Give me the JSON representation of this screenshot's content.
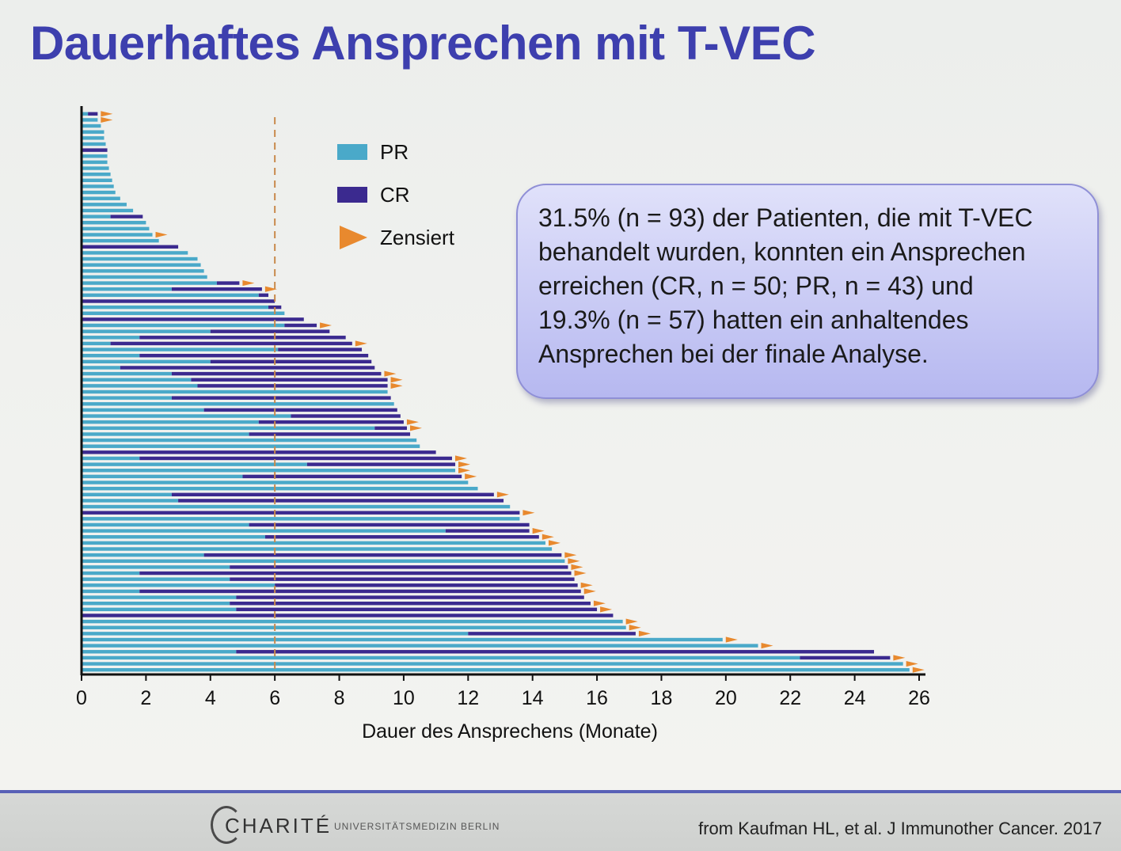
{
  "title": "Dauerhaftes Ansprechen mit T-VEC",
  "callout_lines": [
    "31.5% (n = 93) der Patienten, die mit T-VEC",
    "behandelt wurden, konnten ein Ansprechen",
    "erreichen (CR, n = 50; PR, n = 43) und",
    "19.3% (n = 57) hatten ein anhaltendes",
    "Ansprechen bei der finale Analyse."
  ],
  "footer": {
    "logo_word": "CHARITÉ",
    "logo_sub": "UNIVERSITÄTSMEDIZIN BERLIN",
    "source": "from Kaufman HL, et al. J Immunother Cancer. 2017"
  },
  "colors": {
    "PR": "#4aa9c9",
    "CR": "#3b2a8f",
    "censored": "#e8892e",
    "reference_line": "#c98a4c"
  },
  "chart_data": {
    "type": "bar",
    "orientation": "horizontal",
    "xlabel": "Dauer des Ansprechens (Monate)",
    "xlim": [
      0,
      26
    ],
    "xticks": [
      0,
      2,
      4,
      6,
      8,
      10,
      12,
      14,
      16,
      18,
      20,
      22,
      24,
      26
    ],
    "reference_line_x": 6,
    "legend": [
      {
        "label": "PR",
        "key": "PR"
      },
      {
        "label": "CR",
        "key": "CR"
      },
      {
        "label": "Zensiert",
        "key": "censored"
      }
    ],
    "legend_position": "top-center",
    "bars": [
      {
        "start": 0,
        "pr": 0.2,
        "end": 0.5,
        "censored": true
      },
      {
        "start": 0,
        "pr": 0.5,
        "end": 0.5,
        "censored": true
      },
      {
        "start": 0,
        "pr": 0.6,
        "end": 0.6,
        "censored": false
      },
      {
        "start": 0,
        "pr": 0.7,
        "end": 0.7,
        "censored": false
      },
      {
        "start": 0,
        "pr": 0.7,
        "end": 0.7,
        "censored": false
      },
      {
        "start": 0,
        "pr": 0.75,
        "end": 0.75,
        "censored": false
      },
      {
        "start": 0,
        "pr": 0.0,
        "end": 0.8,
        "censored": false
      },
      {
        "start": 0,
        "pr": 0.8,
        "end": 0.8,
        "censored": false
      },
      {
        "start": 0,
        "pr": 0.8,
        "end": 0.8,
        "censored": false
      },
      {
        "start": 0,
        "pr": 0.85,
        "end": 0.85,
        "censored": false
      },
      {
        "start": 0,
        "pr": 0.9,
        "end": 0.9,
        "censored": false
      },
      {
        "start": 0,
        "pr": 0.95,
        "end": 0.95,
        "censored": false
      },
      {
        "start": 0,
        "pr": 1.0,
        "end": 1.0,
        "censored": false
      },
      {
        "start": 0,
        "pr": 1.05,
        "end": 1.05,
        "censored": false
      },
      {
        "start": 0,
        "pr": 1.2,
        "end": 1.2,
        "censored": false
      },
      {
        "start": 0,
        "pr": 1.4,
        "end": 1.4,
        "censored": false
      },
      {
        "start": 0,
        "pr": 1.6,
        "end": 1.6,
        "censored": false
      },
      {
        "start": 0,
        "pr": 0.9,
        "end": 1.9,
        "censored": false
      },
      {
        "start": 0,
        "pr": 2.0,
        "end": 2.0,
        "censored": false
      },
      {
        "start": 0,
        "pr": 2.1,
        "end": 2.1,
        "censored": false
      },
      {
        "start": 0,
        "pr": 2.2,
        "end": 2.2,
        "censored": true
      },
      {
        "start": 0,
        "pr": 2.4,
        "end": 2.4,
        "censored": false
      },
      {
        "start": 0,
        "pr": 0.0,
        "end": 3.0,
        "censored": false
      },
      {
        "start": 0,
        "pr": 3.3,
        "end": 3.3,
        "censored": false
      },
      {
        "start": 0,
        "pr": 3.6,
        "end": 3.6,
        "censored": false
      },
      {
        "start": 0,
        "pr": 3.7,
        "end": 3.7,
        "censored": false
      },
      {
        "start": 0,
        "pr": 3.8,
        "end": 3.8,
        "censored": false
      },
      {
        "start": 0,
        "pr": 3.9,
        "end": 3.9,
        "censored": false
      },
      {
        "start": 0,
        "pr": 4.2,
        "end": 4.9,
        "censored": true
      },
      {
        "start": 0,
        "pr": 2.8,
        "end": 5.6,
        "censored": true
      },
      {
        "start": 0,
        "pr": 5.5,
        "end": 5.8,
        "censored": false
      },
      {
        "start": 0,
        "pr": 0.0,
        "end": 6.0,
        "censored": false
      },
      {
        "start": 0,
        "pr": 5.8,
        "end": 6.2,
        "censored": false
      },
      {
        "start": 0,
        "pr": 6.3,
        "end": 6.3,
        "censored": false
      },
      {
        "start": 0,
        "pr": 0.0,
        "end": 6.9,
        "censored": false
      },
      {
        "start": 0,
        "pr": 6.3,
        "end": 7.3,
        "censored": true
      },
      {
        "start": 0,
        "pr": 4.0,
        "end": 7.7,
        "censored": false
      },
      {
        "start": 0,
        "pr": 1.8,
        "end": 8.2,
        "censored": false
      },
      {
        "start": 0,
        "pr": 0.9,
        "end": 8.4,
        "censored": true
      },
      {
        "start": 0,
        "pr": 6.1,
        "end": 8.7,
        "censored": false
      },
      {
        "start": 0,
        "pr": 1.8,
        "end": 8.9,
        "censored": false
      },
      {
        "start": 0,
        "pr": 4.0,
        "end": 9.0,
        "censored": false
      },
      {
        "start": 0,
        "pr": 1.2,
        "end": 9.1,
        "censored": false
      },
      {
        "start": 0,
        "pr": 2.8,
        "end": 9.3,
        "censored": true
      },
      {
        "start": 0,
        "pr": 3.4,
        "end": 9.5,
        "censored": true
      },
      {
        "start": 0,
        "pr": 3.6,
        "end": 9.5,
        "censored": true
      },
      {
        "start": 0,
        "pr": 9.5,
        "end": 9.5,
        "censored": false
      },
      {
        "start": 0,
        "pr": 2.8,
        "end": 9.6,
        "censored": false
      },
      {
        "start": 0,
        "pr": 9.7,
        "end": 9.7,
        "censored": false
      },
      {
        "start": 0,
        "pr": 3.8,
        "end": 9.8,
        "censored": false
      },
      {
        "start": 0,
        "pr": 6.5,
        "end": 9.9,
        "censored": false
      },
      {
        "start": 0,
        "pr": 5.5,
        "end": 10.0,
        "censored": true
      },
      {
        "start": 0,
        "pr": 9.1,
        "end": 10.1,
        "censored": true
      },
      {
        "start": 0,
        "pr": 5.2,
        "end": 10.2,
        "censored": false
      },
      {
        "start": 0,
        "pr": 10.4,
        "end": 10.4,
        "censored": false
      },
      {
        "start": 0,
        "pr": 10.5,
        "end": 10.5,
        "censored": false
      },
      {
        "start": 0,
        "pr": 0.0,
        "end": 11.0,
        "censored": false
      },
      {
        "start": 0,
        "pr": 1.8,
        "end": 11.5,
        "censored": true
      },
      {
        "start": 0,
        "pr": 7.0,
        "end": 11.6,
        "censored": true
      },
      {
        "start": 0,
        "pr": 11.6,
        "end": 11.6,
        "censored": true
      },
      {
        "start": 0,
        "pr": 5.0,
        "end": 11.8,
        "censored": true
      },
      {
        "start": 0,
        "pr": 12.0,
        "end": 12.0,
        "censored": false
      },
      {
        "start": 0,
        "pr": 12.3,
        "end": 12.3,
        "censored": false
      },
      {
        "start": 0,
        "pr": 2.8,
        "end": 12.8,
        "censored": true
      },
      {
        "start": 0,
        "pr": 3.0,
        "end": 13.1,
        "censored": false
      },
      {
        "start": 0,
        "pr": 13.3,
        "end": 13.3,
        "censored": false
      },
      {
        "start": 0,
        "pr": 0.0,
        "end": 13.6,
        "censored": true
      },
      {
        "start": 0,
        "pr": 13.6,
        "end": 13.6,
        "censored": false
      },
      {
        "start": 0,
        "pr": 5.2,
        "end": 13.9,
        "censored": false
      },
      {
        "start": 0,
        "pr": 11.3,
        "end": 13.9,
        "censored": true
      },
      {
        "start": 0,
        "pr": 5.7,
        "end": 14.2,
        "censored": true
      },
      {
        "start": 0,
        "pr": 14.4,
        "end": 14.4,
        "censored": true
      },
      {
        "start": 0,
        "pr": 14.6,
        "end": 14.6,
        "censored": false
      },
      {
        "start": 0,
        "pr": 3.8,
        "end": 14.9,
        "censored": true
      },
      {
        "start": 0,
        "pr": 15.0,
        "end": 15.0,
        "censored": true
      },
      {
        "start": 0,
        "pr": 4.6,
        "end": 15.1,
        "censored": true
      },
      {
        "start": 0,
        "pr": 1.8,
        "end": 15.2,
        "censored": true
      },
      {
        "start": 0,
        "pr": 4.6,
        "end": 15.3,
        "censored": false
      },
      {
        "start": 0,
        "pr": 6.0,
        "end": 15.4,
        "censored": true
      },
      {
        "start": 0,
        "pr": 1.8,
        "end": 15.5,
        "censored": true
      },
      {
        "start": 0,
        "pr": 4.8,
        "end": 15.6,
        "censored": false
      },
      {
        "start": 0,
        "pr": 4.6,
        "end": 15.8,
        "censored": true
      },
      {
        "start": 0,
        "pr": 4.8,
        "end": 16.0,
        "censored": true
      },
      {
        "start": 0,
        "pr": 0.0,
        "end": 16.5,
        "censored": false
      },
      {
        "start": 0,
        "pr": 16.8,
        "end": 16.8,
        "censored": true
      },
      {
        "start": 0,
        "pr": 16.9,
        "end": 16.9,
        "censored": true
      },
      {
        "start": 0,
        "pr": 12.0,
        "end": 17.2,
        "censored": true
      },
      {
        "start": 0,
        "pr": 19.9,
        "end": 19.9,
        "censored": true
      },
      {
        "start": 0,
        "pr": 21.0,
        "end": 21.0,
        "censored": true
      },
      {
        "start": 0,
        "pr": 4.8,
        "end": 24.6,
        "censored": false
      },
      {
        "start": 0,
        "pr": 22.3,
        "end": 25.1,
        "censored": true
      },
      {
        "start": 0,
        "pr": 25.5,
        "end": 25.5,
        "censored": true
      },
      {
        "start": 0,
        "pr": 25.7,
        "end": 25.7,
        "censored": true
      }
    ]
  }
}
